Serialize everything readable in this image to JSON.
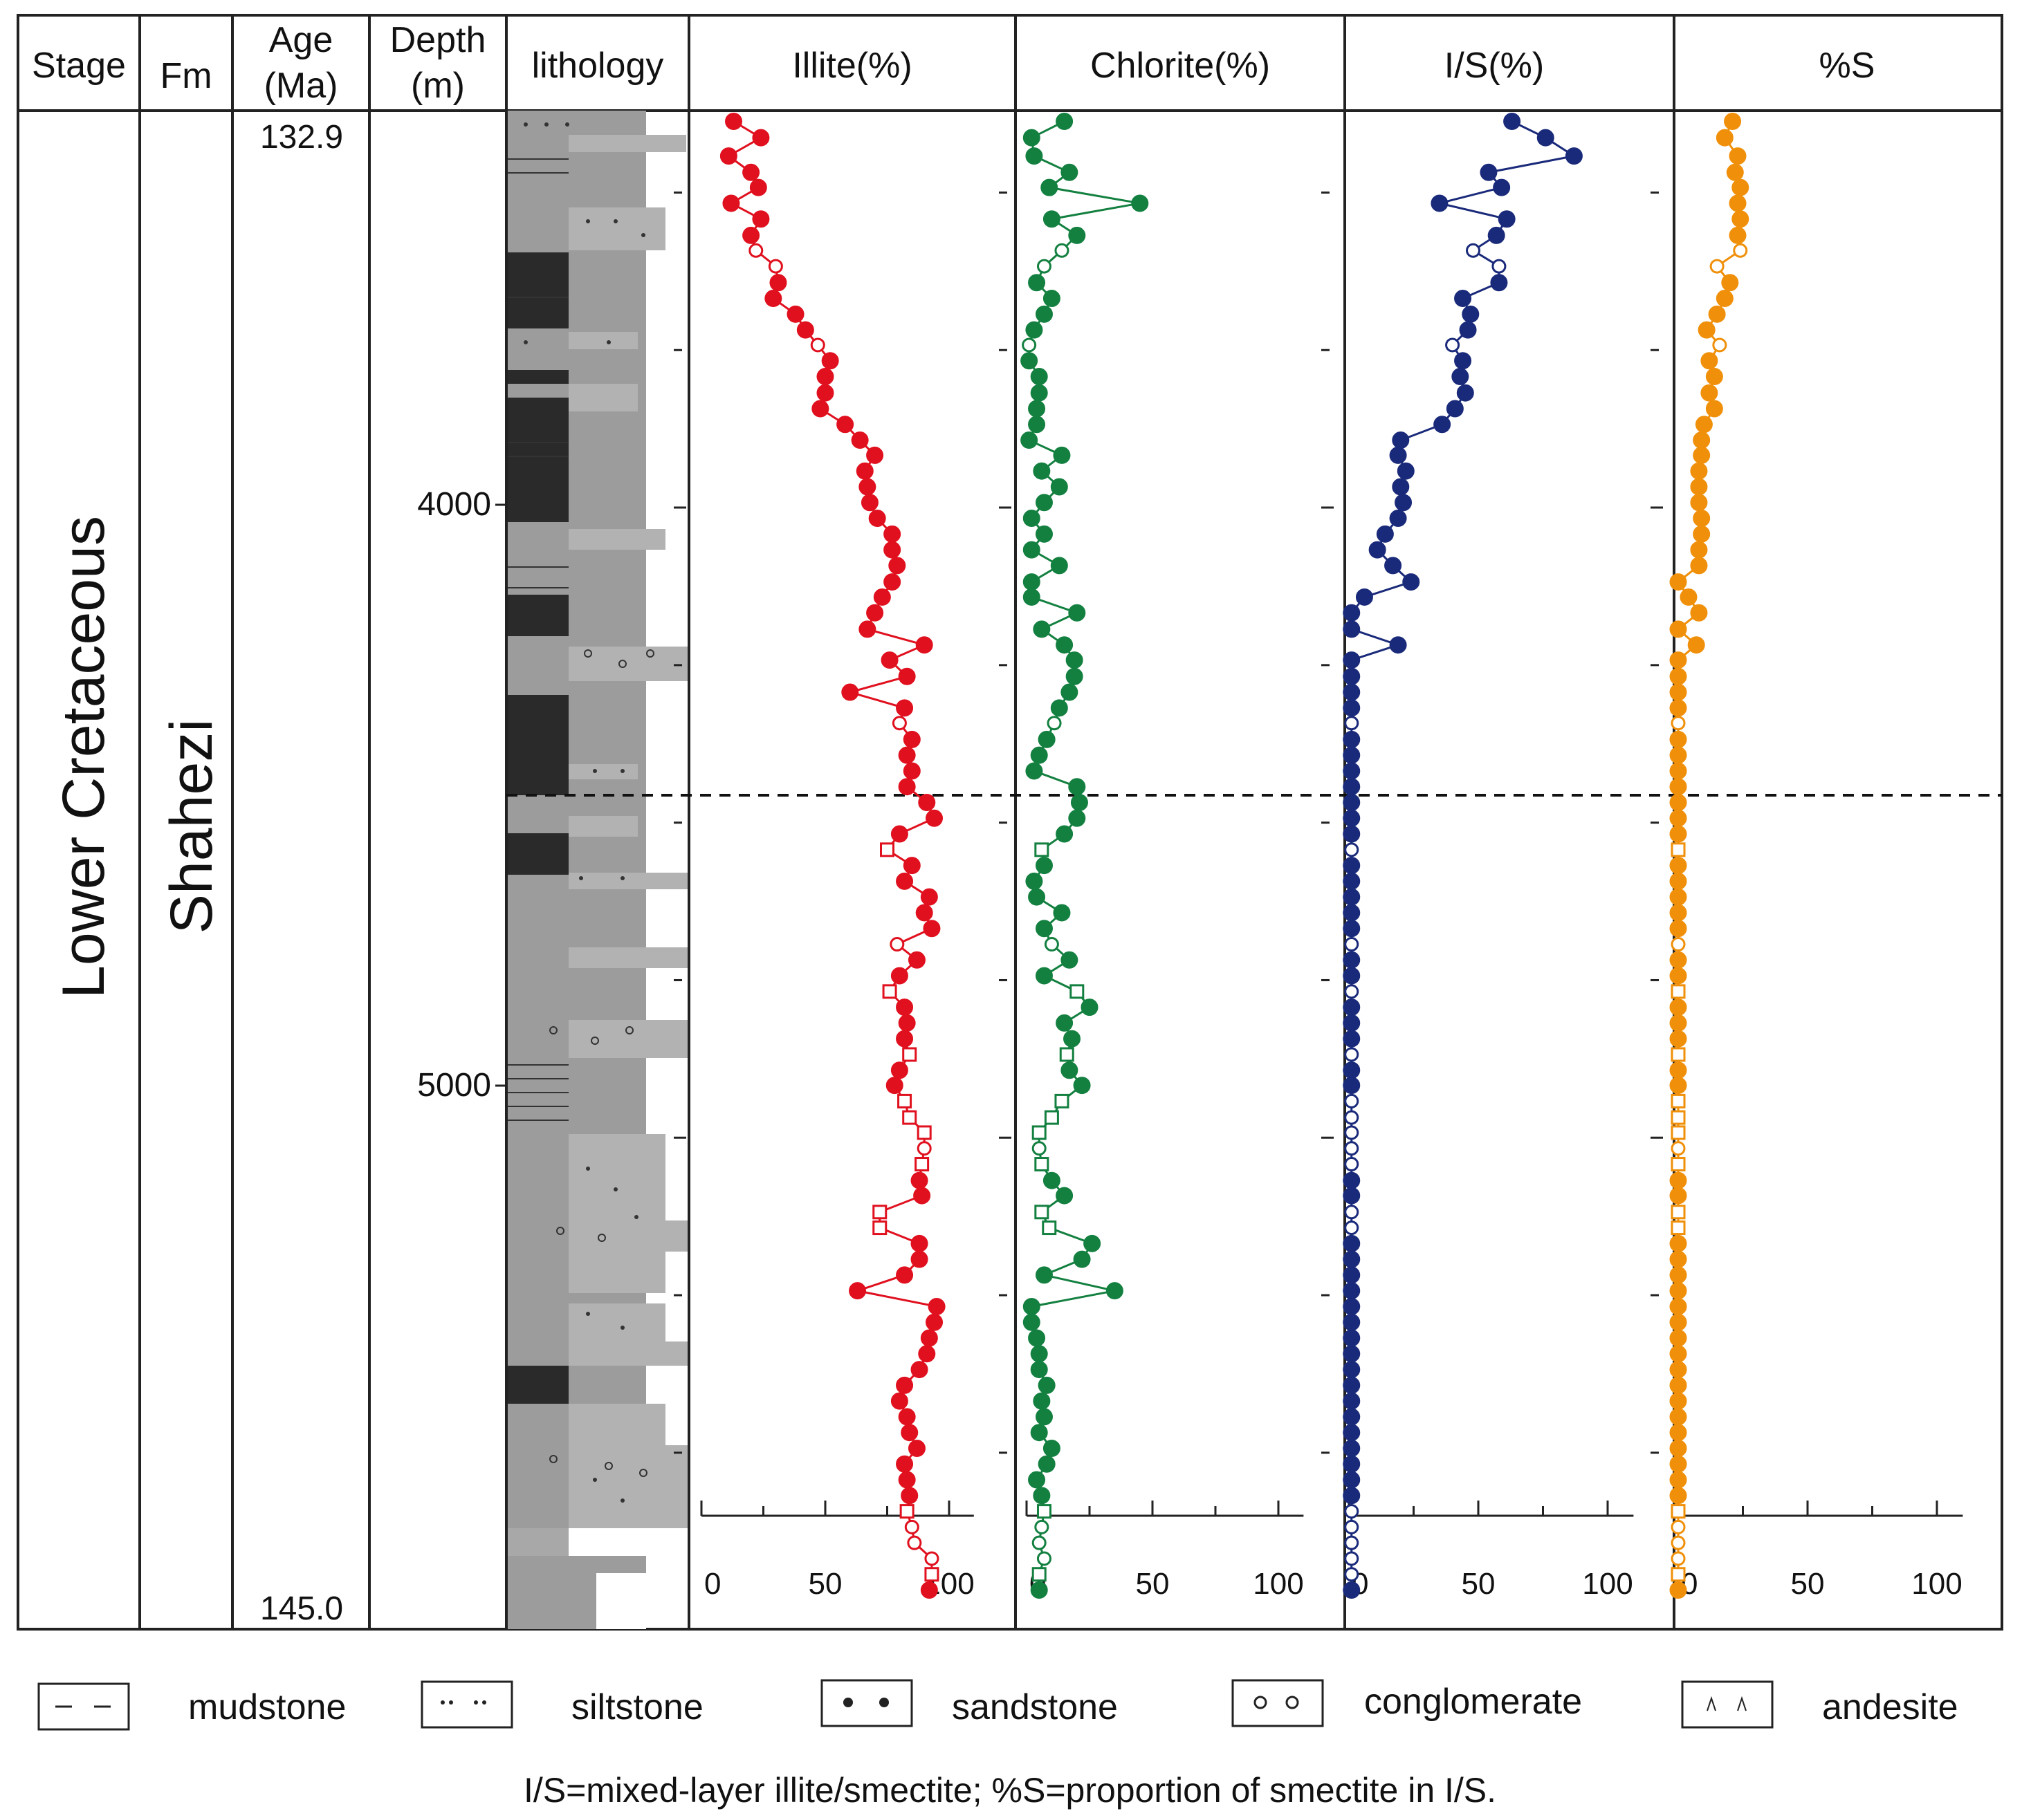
{
  "headers": {
    "stage": "Stage",
    "fm": "Fm",
    "age_l1": "Age",
    "age_l2": "(Ma)",
    "depth_l1": "Depth",
    "depth_l2": "(m)",
    "lithology": "lithology",
    "illite": "Illite(%)",
    "chlorite": "Chlorite(%)",
    "is": "I/S(%)",
    "s": "%S"
  },
  "stage_value": "Lower Cretaceous",
  "fm_value": "Shahezi",
  "age_top": "132.9",
  "age_bottom": "145.0",
  "depth_labels": [
    "4000",
    "5000"
  ],
  "axis_tick_labels": [
    "0",
    "50",
    "100"
  ],
  "legend": {
    "mudstone": "mudstone",
    "siltstone": "siltstone",
    "sandstone": "sandstone",
    "conglomerate": "conglomerate",
    "andesite": "andesite"
  },
  "footnote": "I/S=mixed-layer illite/smectite;  %S=proportion of smectite in I/S.",
  "colors": {
    "illite": "#e0101e",
    "chlorite": "#138040",
    "is": "#1a2a7a",
    "s": "#f0900a",
    "mudstone_fill": "#2b2b2b",
    "siltstone_fill": "#9a9a9a",
    "sandstone_fill": "#b4b4b4"
  },
  "chart_data": {
    "type": "line",
    "y_axis": {
      "quantity": "Depth (m)",
      "range": [
        3370,
        5780
      ],
      "inverted": true,
      "labeled_ticks": [
        4000,
        5000
      ]
    },
    "x_axis": {
      "range": [
        0,
        100
      ],
      "ticks": [
        0,
        50,
        100
      ]
    },
    "boundary_depth": 4500,
    "depths": [
      3387,
      3413,
      3442,
      3468,
      3492,
      3517,
      3542,
      3568,
      3592,
      3617,
      3643,
      3668,
      3693,
      3718,
      3742,
      3767,
      3792,
      3818,
      3843,
      3868,
      3893,
      3917,
      3942,
      3967,
      3992,
      4017,
      4042,
      4067,
      4092,
      4118,
      4142,
      4167,
      4193,
      4218,
      4242,
      4268,
      4293,
      4318,
      4342,
      4368,
      4393,
      4418,
      4443,
      4468,
      4493,
      4518,
      4543,
      4568,
      4593,
      4618,
      4643,
      4668,
      4693,
      4718,
      4743,
      4768,
      4793,
      4818,
      4843,
      4868,
      4893,
      4917,
      4942,
      4968,
      4992,
      5017,
      5042,
      5068,
      5092,
      5118,
      5143,
      5168,
      5193,
      5218,
      5243,
      5268,
      5293,
      5318,
      5343,
      5368,
      5393,
      5418,
      5443,
      5468,
      5493,
      5518,
      5543,
      5568,
      5593,
      5618,
      5643,
      5668,
      5693,
      5718
    ],
    "open_markers": [
      8,
      9,
      14,
      38,
      46,
      52,
      55,
      59,
      62,
      63,
      64,
      65,
      66,
      69,
      70,
      88,
      89,
      90,
      91,
      92
    ],
    "open_marker_shapes": {
      "46": "sq",
      "55": "sq",
      "59": "sq",
      "62": "sq",
      "63": "sq",
      "64": "sq",
      "66": "sq",
      "69": "sq",
      "70": "sq",
      "88": "sq",
      "92": "sq"
    },
    "series": [
      {
        "name": "Illite(%)",
        "values": [
          13,
          24,
          11,
          20,
          23,
          12,
          24,
          20,
          22,
          30,
          31,
          29,
          38,
          42,
          47,
          52,
          50,
          50,
          48,
          58,
          64,
          70,
          66,
          67,
          68,
          71,
          77,
          77,
          79,
          77,
          73,
          70,
          67,
          90,
          76,
          83,
          60,
          82,
          80,
          85,
          83,
          85,
          83,
          91,
          94,
          80,
          75,
          85,
          82,
          92,
          90,
          93,
          79,
          87,
          80,
          76,
          82,
          83,
          82,
          84,
          80,
          78,
          82,
          84,
          90,
          90,
          89,
          88,
          89,
          72,
          72,
          88,
          88,
          82,
          63,
          95,
          94,
          92,
          91,
          88,
          82,
          80,
          83,
          84,
          87,
          82,
          83,
          84,
          83,
          85,
          86,
          93,
          93,
          92
        ]
      },
      {
        "name": "Chlorite(%)",
        "values": [
          15,
          2,
          3,
          17,
          9,
          45,
          10,
          20,
          14,
          7,
          4,
          10,
          7,
          3,
          1,
          1,
          5,
          5,
          4,
          4,
          1,
          14,
          6,
          13,
          7,
          2,
          7,
          2,
          13,
          2,
          2,
          20,
          6,
          15,
          19,
          19,
          17,
          13,
          11,
          8,
          5,
          3,
          20,
          21,
          20,
          15,
          6,
          7,
          3,
          4,
          14,
          7,
          10,
          17,
          7,
          20,
          25,
          15,
          18,
          16,
          17,
          22,
          14,
          10,
          5,
          5,
          6,
          10,
          15,
          6,
          9,
          26,
          22,
          7,
          35,
          2,
          2,
          4,
          5,
          5,
          8,
          6,
          7,
          5,
          10,
          8,
          4,
          6,
          7,
          6,
          5,
          7,
          5,
          5
        ]
      },
      {
        "name": "I/S(%)",
        "values": [
          63,
          76,
          87,
          54,
          59,
          35,
          61,
          57,
          48,
          58,
          58,
          44,
          47,
          46,
          40,
          44,
          43,
          45,
          41,
          36,
          20,
          19,
          22,
          20,
          21,
          19,
          14,
          11,
          17,
          24,
          6,
          1,
          1,
          19,
          1,
          1,
          1,
          1,
          1,
          1,
          1,
          1,
          1,
          1,
          1,
          1,
          1,
          1,
          1,
          1,
          1,
          1,
          1,
          1,
          1,
          1,
          1,
          1,
          1,
          1,
          1,
          1,
          1,
          1,
          1,
          1,
          1,
          1,
          1,
          1,
          1,
          1,
          1,
          1,
          1,
          1,
          1,
          1,
          1,
          1,
          1,
          1,
          1,
          1,
          1,
          1,
          1,
          1,
          1,
          1,
          1,
          1,
          1,
          1
        ]
      },
      {
        "name": "%S",
        "values": [
          21,
          18,
          23,
          22,
          24,
          23,
          24,
          23,
          24,
          15,
          20,
          18,
          15,
          11,
          16,
          12,
          14,
          12,
          14,
          10,
          9,
          9,
          8,
          8,
          8,
          9,
          9,
          8,
          8,
          0,
          4,
          8,
          0,
          7,
          0,
          0,
          0,
          0,
          0,
          0,
          0,
          0,
          0,
          0,
          0,
          0,
          0,
          0,
          0,
          0,
          0,
          0,
          0,
          0,
          0,
          0,
          0,
          0,
          0,
          0,
          0,
          0,
          0,
          0,
          0,
          0,
          0,
          0,
          0,
          0,
          0,
          0,
          0,
          0,
          0,
          0,
          0,
          0,
          0,
          0,
          0,
          0,
          0,
          0,
          0,
          0,
          0,
          0,
          0,
          0,
          0,
          0,
          0,
          0
        ]
      }
    ]
  }
}
